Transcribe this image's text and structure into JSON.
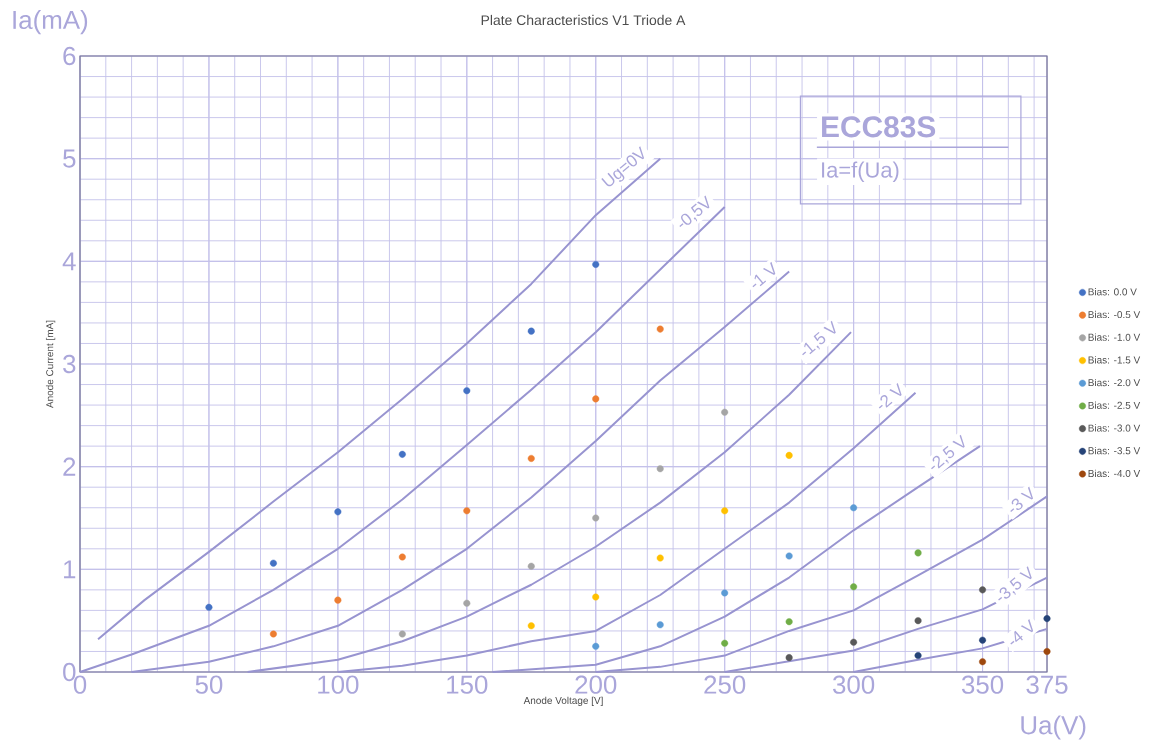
{
  "chart_data": {
    "type": "scatter",
    "title": "Plate Characteristics V1 Triode A",
    "xlabel": "Anode Voltage [V]",
    "ylabel": "Anode Current [mA]",
    "annotations": [
      "Ia(mA)",
      "Ua(V)",
      "ECC83S",
      "Ia=f(Ua)"
    ],
    "xlim": [
      0,
      375
    ],
    "ylim": [
      0,
      6
    ],
    "xticks": [
      0,
      50,
      100,
      150,
      200,
      250,
      300,
      350,
      375
    ],
    "yticks": [
      0,
      1,
      2,
      3,
      4,
      5,
      6
    ],
    "grid": true,
    "legend": "right",
    "series": [
      {
        "name": "Bias:  0.0 V",
        "color": "#4472c4",
        "marker": "circle",
        "x": [
          50,
          75,
          100,
          125,
          150,
          175,
          200
        ],
        "values": [
          0.63,
          1.06,
          1.56,
          2.12,
          2.74,
          3.32,
          3.97
        ]
      },
      {
        "name": "Bias: -0.5 V",
        "color": "#ed7d31",
        "marker": "circle",
        "x": [
          75,
          100,
          125,
          150,
          175,
          200,
          225
        ],
        "values": [
          0.37,
          0.7,
          1.12,
          1.57,
          2.08,
          2.66,
          3.34
        ]
      },
      {
        "name": "Bias: -1.0 V",
        "color": "#a5a5a5",
        "marker": "circle",
        "x": [
          125,
          150,
          175,
          200,
          225,
          250
        ],
        "values": [
          0.37,
          0.67,
          1.03,
          1.5,
          1.98,
          2.53
        ]
      },
      {
        "name": "Bias: -1.5 V",
        "color": "#ffc000",
        "marker": "circle",
        "x": [
          175,
          200,
          225,
          250,
          275
        ],
        "values": [
          0.45,
          0.73,
          1.11,
          1.57,
          2.11
        ]
      },
      {
        "name": "Bias: -2.0 V",
        "color": "#5b9bd5",
        "marker": "circle",
        "x": [
          200,
          225,
          250,
          275,
          300
        ],
        "values": [
          0.25,
          0.46,
          0.77,
          1.13,
          1.6
        ]
      },
      {
        "name": "Bias: -2.5 V",
        "color": "#70ad47",
        "marker": "circle",
        "x": [
          250,
          275,
          300,
          325
        ],
        "values": [
          0.28,
          0.49,
          0.83,
          1.16
        ]
      },
      {
        "name": "Bias: -3.0 V",
        "color": "#595959",
        "marker": "circle",
        "x": [
          275,
          300,
          325,
          350
        ],
        "values": [
          0.14,
          0.29,
          0.5,
          0.8
        ]
      },
      {
        "name": "Bias: -3.5 V",
        "color": "#264478",
        "marker": "circle",
        "x": [
          325,
          350,
          375
        ],
        "values": [
          0.16,
          0.31,
          0.52
        ]
      },
      {
        "name": "Bias: -4.0 V",
        "color": "#9e480e",
        "marker": "circle",
        "x": [
          350,
          375
        ],
        "values": [
          0.1,
          0.2
        ]
      },
      {
        "name": "Ug=0V",
        "type": "line",
        "marker": "none",
        "color": "#9894d0",
        "x": [
          7,
          25,
          50,
          75,
          100,
          125,
          150,
          175,
          200,
          225
        ],
        "values": [
          0.32,
          0.7,
          1.17,
          1.66,
          2.14,
          2.66,
          3.2,
          3.78,
          4.45,
          5.0
        ]
      },
      {
        "name": "-0,5V",
        "type": "line",
        "marker": "none",
        "color": "#9894d0",
        "x": [
          0,
          20,
          50,
          75,
          100,
          125,
          150,
          175,
          200,
          225,
          250
        ],
        "values": [
          0,
          0.17,
          0.45,
          0.8,
          1.2,
          1.68,
          2.21,
          2.75,
          3.31,
          3.92,
          4.53
        ]
      },
      {
        "name": "-1 V",
        "type": "line",
        "marker": "none",
        "color": "#9894d0",
        "x": [
          20,
          50,
          75,
          100,
          125,
          150,
          175,
          200,
          225,
          250,
          275
        ],
        "values": [
          0,
          0.1,
          0.25,
          0.45,
          0.8,
          1.2,
          1.7,
          2.25,
          2.84,
          3.36,
          3.9
        ]
      },
      {
        "name": "-1,5 V",
        "type": "line",
        "marker": "none",
        "color": "#9894d0",
        "x": [
          65,
          100,
          125,
          150,
          175,
          200,
          225,
          250,
          275,
          299
        ],
        "values": [
          0,
          0.12,
          0.3,
          0.54,
          0.85,
          1.22,
          1.65,
          2.14,
          2.7,
          3.31
        ]
      },
      {
        "name": "-2 V",
        "type": "line",
        "marker": "none",
        "color": "#9894d0",
        "x": [
          100,
          125,
          150,
          175,
          200,
          225,
          250,
          275,
          300,
          324
        ],
        "values": [
          0,
          0.06,
          0.16,
          0.3,
          0.4,
          0.75,
          1.2,
          1.65,
          2.18,
          2.72
        ]
      },
      {
        "name": "-2,5 V",
        "type": "line",
        "marker": "none",
        "color": "#9894d0",
        "x": [
          160,
          200,
          225,
          250,
          275,
          300,
          325,
          349
        ],
        "values": [
          0,
          0.07,
          0.25,
          0.54,
          0.92,
          1.38,
          1.8,
          2.2
        ]
      },
      {
        "name": "-3 V",
        "type": "line",
        "marker": "none",
        "color": "#9894d0",
        "x": [
          200,
          225,
          250,
          275,
          300,
          325,
          350,
          375
        ],
        "values": [
          0,
          0.05,
          0.16,
          0.4,
          0.6,
          0.94,
          1.29,
          1.71
        ]
      },
      {
        "name": "-3,5 V",
        "type": "line",
        "marker": "none",
        "color": "#9894d0",
        "x": [
          250,
          300,
          325,
          350,
          375
        ],
        "values": [
          0,
          0.21,
          0.42,
          0.61,
          0.92
        ]
      },
      {
        "name": "-4 V",
        "type": "line",
        "marker": "none",
        "color": "#9894d0",
        "x": [
          300,
          325,
          350,
          375
        ],
        "values": [
          0,
          0.12,
          0.23,
          0.42
        ]
      }
    ]
  }
}
